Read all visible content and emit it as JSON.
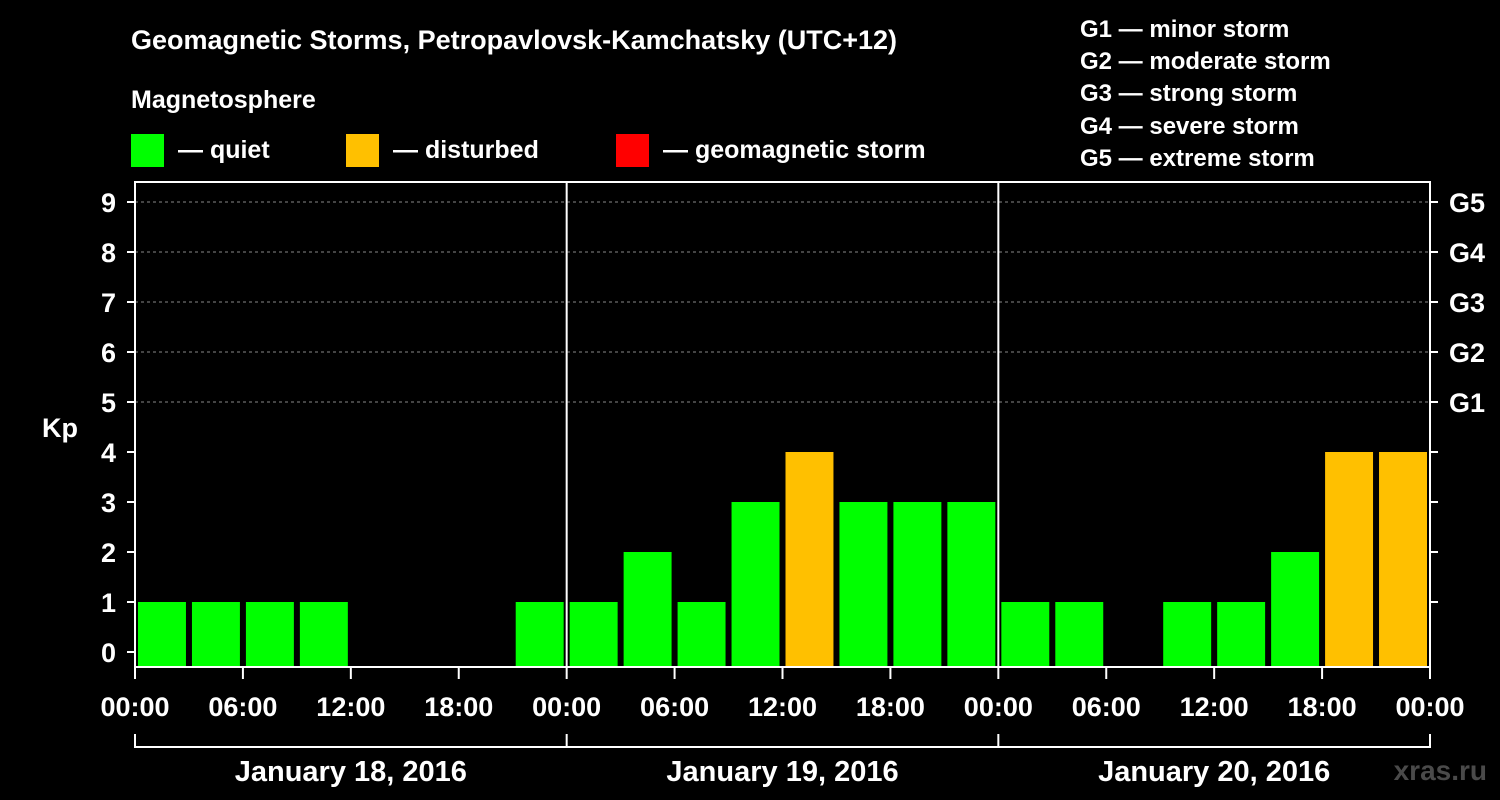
{
  "title": "Geomagnetic Storms, Petropavlovsk-Kamchatsky (UTC+12)",
  "legend": {
    "heading": "Magnetosphere",
    "items": [
      {
        "label": "— quiet",
        "color": "#00ff00"
      },
      {
        "label": "— disturbed",
        "color": "#ffc000"
      },
      {
        "label": "— geomagnetic storm",
        "color": "#ff0000"
      }
    ]
  },
  "g_scale": [
    "G1 — minor storm",
    "G2 — moderate storm",
    "G3 — strong storm",
    "G4 — severe storm",
    "G5 — extreme storm"
  ],
  "watermark": "xras.ru",
  "chart_data": {
    "type": "bar",
    "ylabel": "Kp",
    "ylim": [
      0,
      9
    ],
    "yticks": [
      0,
      1,
      2,
      3,
      4,
      5,
      6,
      7,
      8,
      9
    ],
    "right_labels": [
      {
        "kp": 5,
        "label": "G1"
      },
      {
        "kp": 6,
        "label": "G2"
      },
      {
        "kp": 7,
        "label": "G3"
      },
      {
        "kp": 8,
        "label": "G4"
      },
      {
        "kp": 9,
        "label": "G5"
      }
    ],
    "x_tick_labels": [
      "00:00",
      "06:00",
      "12:00",
      "18:00",
      "00:00",
      "06:00",
      "12:00",
      "18:00",
      "00:00",
      "06:00",
      "12:00",
      "18:00",
      "00:00"
    ],
    "days": [
      "January 18, 2016",
      "January 19, 2016",
      "January 20, 2016"
    ],
    "interval_hours": 3,
    "gridlines": [
      5,
      6,
      7,
      8,
      9
    ],
    "values": [
      1,
      1,
      1,
      1,
      0,
      0,
      0,
      1,
      1,
      2,
      1,
      3,
      4,
      3,
      3,
      3,
      1,
      1,
      0,
      1,
      1,
      2,
      4,
      4
    ],
    "status": [
      "quiet",
      "quiet",
      "quiet",
      "quiet",
      "quiet",
      "quiet",
      "quiet",
      "quiet",
      "quiet",
      "quiet",
      "quiet",
      "quiet",
      "disturbed",
      "quiet",
      "quiet",
      "quiet",
      "quiet",
      "quiet",
      "quiet",
      "quiet",
      "quiet",
      "quiet",
      "disturbed",
      "disturbed"
    ],
    "status_colors": {
      "quiet": "#00ff00",
      "disturbed": "#ffc000",
      "storm": "#ff0000"
    }
  }
}
